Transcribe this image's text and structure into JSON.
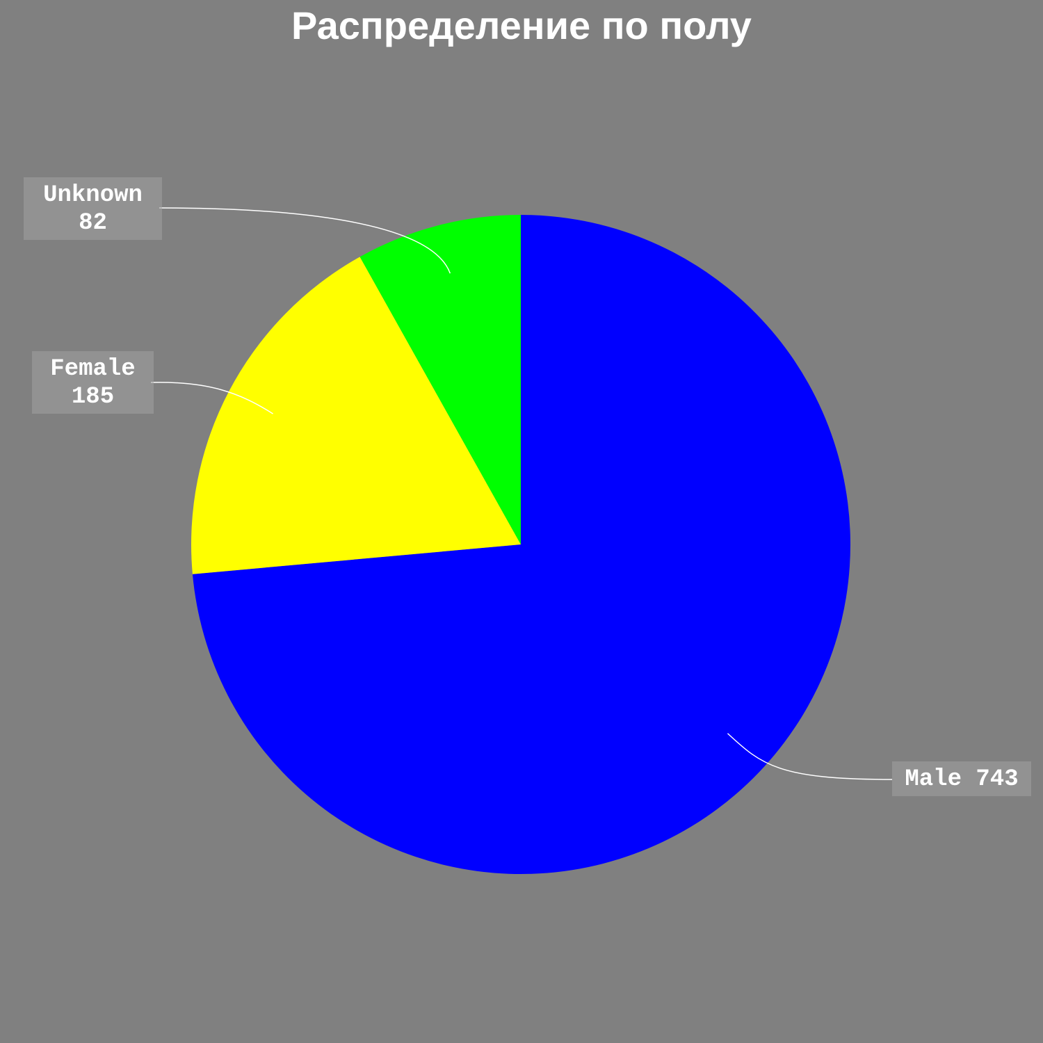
{
  "chart_data": {
    "type": "pie",
    "title": "Распределение по полу",
    "start_angle": "12 o'clock",
    "direction": "clockwise",
    "slices": [
      {
        "label": "Male",
        "value": 743,
        "value_text": "743",
        "color": "#0000ff"
      },
      {
        "label": "Female",
        "value": 185,
        "value_text": "185",
        "color": "#ffff00"
      },
      {
        "label": "Unknown",
        "value": 82,
        "value_text": "82",
        "color": "#00ff00"
      }
    ],
    "background_color": "#808080",
    "leader_line_color": "#ffffff",
    "label_text_color": "#ffffff"
  }
}
